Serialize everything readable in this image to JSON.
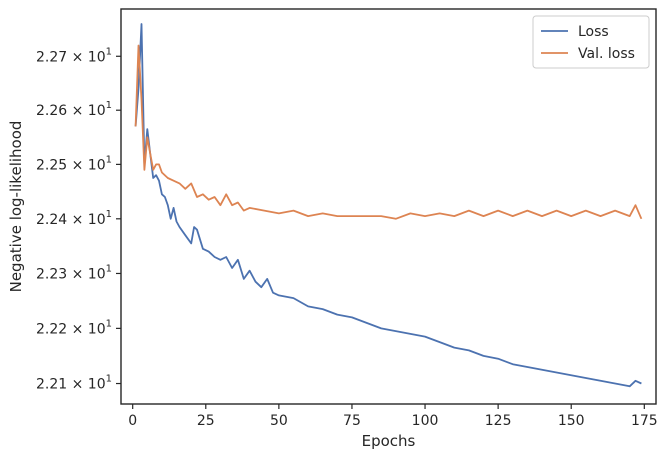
{
  "chart_data": {
    "type": "line",
    "title": "",
    "xlabel": "Epochs",
    "ylabel": "Negative log-likelihood",
    "yscale": "log",
    "xlim": [
      -4,
      179
    ],
    "ylim": [
      22.063,
      22.788
    ],
    "x_ticks": [
      0,
      25,
      50,
      75,
      100,
      125,
      150,
      175
    ],
    "y_ticks": [
      {
        "value": 22.1,
        "mantissa": "2.21",
        "exponent": "1"
      },
      {
        "value": 22.2,
        "mantissa": "2.22",
        "exponent": "1"
      },
      {
        "value": 22.3,
        "mantissa": "2.23",
        "exponent": "1"
      },
      {
        "value": 22.4,
        "mantissa": "2.24",
        "exponent": "1"
      },
      {
        "value": 22.5,
        "mantissa": "2.25",
        "exponent": "1"
      },
      {
        "value": 22.6,
        "mantissa": "2.26",
        "exponent": "1"
      },
      {
        "value": 22.7,
        "mantissa": "2.27",
        "exponent": "1"
      }
    ],
    "times_symbol": "×",
    "legend_position": "upper-right",
    "grid": false,
    "series": [
      {
        "name": "Loss",
        "color": "#4c72b0",
        "x": [
          1,
          2,
          3,
          4,
          5,
          6,
          7,
          8,
          9,
          10,
          11,
          12,
          13,
          14,
          15,
          16,
          18,
          20,
          21,
          22,
          24,
          26,
          28,
          30,
          32,
          34,
          36,
          38,
          40,
          42,
          44,
          46,
          48,
          50,
          55,
          60,
          65,
          70,
          75,
          80,
          85,
          90,
          95,
          100,
          105,
          110,
          115,
          120,
          125,
          130,
          135,
          140,
          145,
          150,
          155,
          160,
          165,
          170,
          172,
          174
        ],
        "y": [
          22.57,
          22.64,
          22.76,
          22.5,
          22.565,
          22.52,
          22.475,
          22.48,
          22.47,
          22.445,
          22.44,
          22.425,
          22.4,
          22.42,
          22.395,
          22.385,
          22.37,
          22.355,
          22.385,
          22.38,
          22.345,
          22.34,
          22.33,
          22.325,
          22.33,
          22.31,
          22.325,
          22.29,
          22.305,
          22.285,
          22.275,
          22.29,
          22.265,
          22.26,
          22.255,
          22.24,
          22.235,
          22.225,
          22.22,
          22.21,
          22.2,
          22.195,
          22.19,
          22.185,
          22.175,
          22.165,
          22.16,
          22.15,
          22.145,
          22.135,
          22.13,
          22.125,
          22.12,
          22.115,
          22.11,
          22.105,
          22.1,
          22.095,
          22.105,
          22.1
        ]
      },
      {
        "name": "Val. loss",
        "color": "#dd8452",
        "x": [
          1,
          2,
          3,
          4,
          5,
          6,
          7,
          8,
          9,
          10,
          12,
          14,
          16,
          18,
          20,
          22,
          24,
          26,
          28,
          30,
          32,
          34,
          36,
          38,
          40,
          45,
          50,
          55,
          60,
          65,
          70,
          75,
          80,
          85,
          90,
          95,
          100,
          105,
          110,
          115,
          120,
          125,
          130,
          135,
          140,
          145,
          150,
          155,
          160,
          165,
          170,
          172,
          174
        ],
        "y": [
          22.57,
          22.72,
          22.62,
          22.49,
          22.55,
          22.52,
          22.49,
          22.5,
          22.5,
          22.485,
          22.475,
          22.47,
          22.465,
          22.455,
          22.465,
          22.44,
          22.445,
          22.435,
          22.44,
          22.425,
          22.445,
          22.425,
          22.43,
          22.415,
          22.42,
          22.415,
          22.41,
          22.415,
          22.405,
          22.41,
          22.405,
          22.405,
          22.405,
          22.405,
          22.4,
          22.41,
          22.405,
          22.41,
          22.405,
          22.415,
          22.405,
          22.415,
          22.405,
          22.415,
          22.405,
          22.415,
          22.405,
          22.415,
          22.405,
          22.415,
          22.405,
          22.425,
          22.4
        ]
      }
    ]
  }
}
